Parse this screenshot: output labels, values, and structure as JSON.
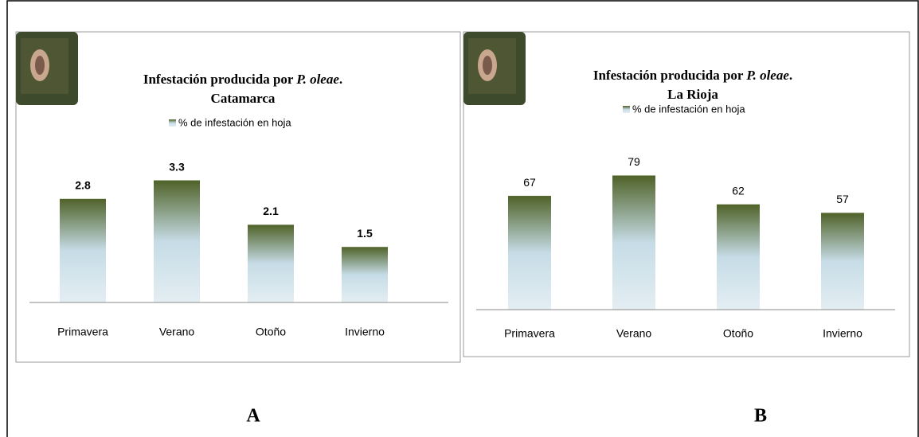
{
  "chart_data": [
    {
      "type": "bar",
      "title": [
        {
          "text": "Infestación producida por "
        },
        {
          "text": "P. oleae",
          "italic": true
        },
        {
          "text": "."
        }
      ],
      "subtitle": "Catamarca",
      "categories": [
        "Primavera",
        "Verano",
        "Otoño",
        "Invierno"
      ],
      "series": [
        {
          "name": "% de infestación en hoja",
          "values": [
            2.8,
            3.3,
            2.1,
            1.5
          ],
          "colors": [
            "#4f6228",
            "#c6dce6",
            "#e4eef3"
          ]
        }
      ],
      "ylim": [
        0,
        4
      ],
      "value_labels_bold": true,
      "panel_label": "A"
    },
    {
      "type": "bar",
      "title": [
        {
          "text": "Infestación producida por "
        },
        {
          "text": "P. oleae",
          "italic": true
        },
        {
          "text": "."
        }
      ],
      "subtitle": "La Rioja",
      "categories": [
        "Primavera",
        "Verano",
        "Otoño",
        "Invierno"
      ],
      "series": [
        {
          "name": "% de infestación en hoja",
          "values": [
            67,
            79,
            62,
            57
          ],
          "colors": [
            "#4f6228",
            "#c6dce6",
            "#e4eef3"
          ]
        }
      ],
      "ylim": [
        0,
        90
      ],
      "value_labels_bold": false,
      "panel_label": "B"
    }
  ]
}
